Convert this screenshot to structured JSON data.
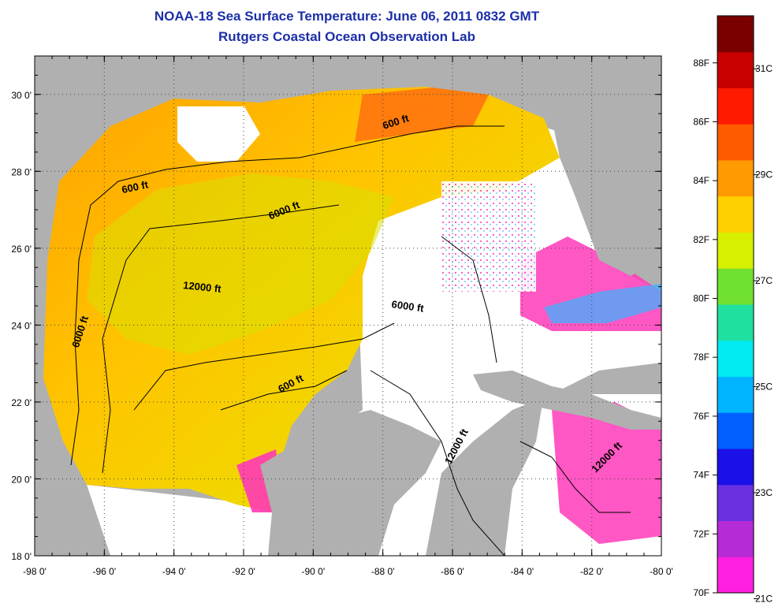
{
  "title": "NOAA-18 Sea Surface Temperature:  June 06, 2011 0832 GMT",
  "subtitle": "Rutgers Coastal Ocean Observation Lab",
  "map": {
    "lon_ticks": [
      "-98 0'",
      "-96 0'",
      "-94 0'",
      "-92 0'",
      "-90 0'",
      "-88 0'",
      "-86 0'",
      "-84 0'",
      "-82 0'",
      "-80 0'"
    ],
    "lat_ticks": [
      "18 0'",
      "20 0'",
      "22 0'",
      "24 0'",
      "26 0'",
      "28 0'",
      "30 0'"
    ],
    "lon_range": [
      -98,
      -80
    ],
    "lat_range": [
      18,
      31
    ],
    "grid": true,
    "contour_labels": [
      {
        "text": "600 ft",
        "lon": -87.6,
        "lat": 29.2,
        "rotate": -18
      },
      {
        "text": "600 ft",
        "lon": -95.1,
        "lat": 27.5,
        "rotate": -12
      },
      {
        "text": "6000 ft",
        "lon": -90.8,
        "lat": 26.9,
        "rotate": -22
      },
      {
        "text": "12000 ft",
        "lon": -93.2,
        "lat": 24.9,
        "rotate": 6
      },
      {
        "text": "6000 ft",
        "lon": -87.3,
        "lat": 24.4,
        "rotate": 8
      },
      {
        "text": "6000 ft",
        "lon": -96.6,
        "lat": 23.8,
        "rotate": -72
      },
      {
        "text": "600 ft",
        "lon": -90.6,
        "lat": 22.4,
        "rotate": -28
      },
      {
        "text": "12000 ft",
        "lon": -85.8,
        "lat": 20.8,
        "rotate": -62
      },
      {
        "text": "12000 ft",
        "lon": -81.5,
        "lat": 20.5,
        "rotate": -45
      }
    ]
  },
  "colorbar": {
    "f_labels": [
      "88F",
      "86F",
      "84F",
      "82F",
      "80F",
      "78F",
      "76F",
      "74F",
      "72F",
      "70F"
    ],
    "c_labels": [
      "31C",
      "29C",
      "27C",
      "25C",
      "23C",
      "21C"
    ],
    "f_range": [
      70,
      89.6
    ],
    "colors": [
      "#ff1fe0",
      "#b52bd6",
      "#6a2fe0",
      "#1a10e8",
      "#0060ff",
      "#00b4ff",
      "#00eaf0",
      "#20e0a0",
      "#70e030",
      "#d6f000",
      "#ffd000",
      "#ff9a00",
      "#ff5a00",
      "#ff1a00",
      "#c80000",
      "#7a0000"
    ]
  }
}
